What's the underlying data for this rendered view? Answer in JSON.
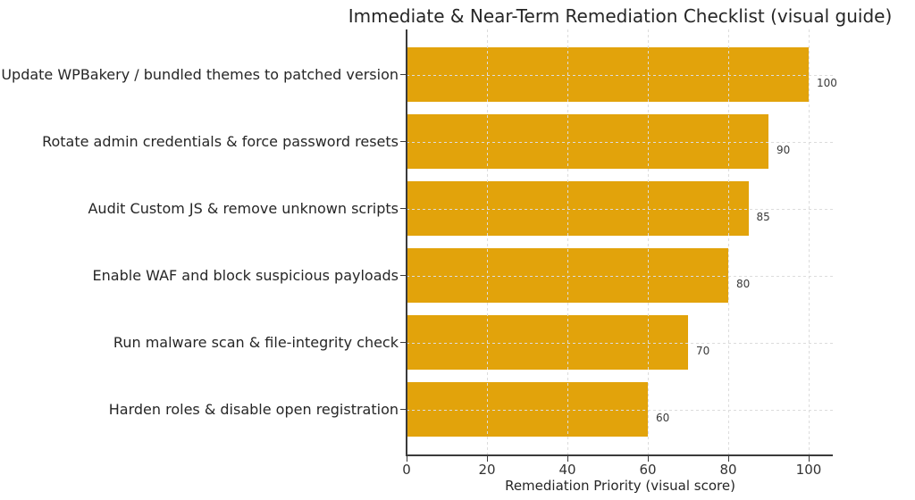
{
  "chart_data": {
    "type": "bar",
    "orientation": "horizontal",
    "title": "Immediate & Near-Term Remediation Checklist (visual guide)",
    "xlabel": "Remediation Priority (visual score)",
    "ylabel": "",
    "categories": [
      "Update WPBakery / bundled themes to patched version",
      "Rotate admin credentials & force password resets",
      "Audit Custom JS & remove unknown scripts",
      "Enable WAF and block suspicious payloads",
      "Run malware scan & file-integrity check",
      "Harden roles & disable open registration"
    ],
    "values": [
      100,
      90,
      85,
      80,
      70,
      60
    ],
    "value_labels": [
      "100",
      "90",
      "85",
      "80",
      "70",
      "60"
    ],
    "xticks": [
      0,
      20,
      40,
      60,
      80,
      100
    ],
    "xlim": [
      0,
      106
    ],
    "bar_color": "#e2a30b",
    "grid": {
      "style": "dashed",
      "color": "#dcdcdc",
      "drawn_above_bars": true
    },
    "legend": "none",
    "spines": [
      "left",
      "bottom"
    ]
  }
}
